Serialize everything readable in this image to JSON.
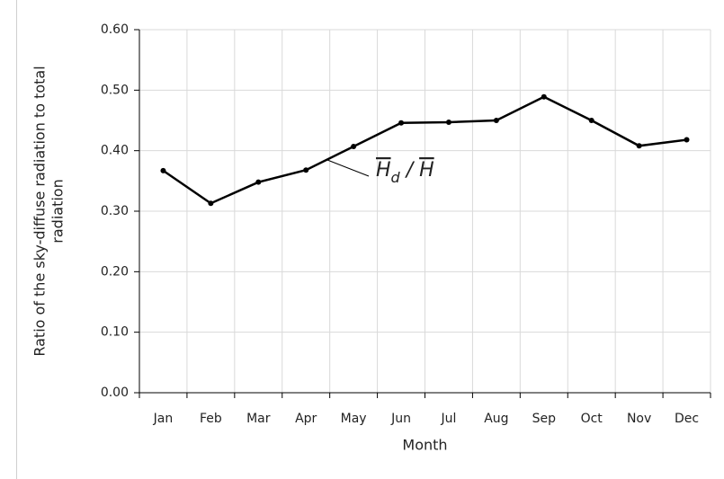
{
  "chart_data": {
    "type": "line",
    "y_label": [
      "Ratio of the sky-diffuse radiation to total",
      "radiation"
    ],
    "x_label": "Month",
    "categories": [
      "Jan",
      "Feb",
      "Mar",
      "Apr",
      "May",
      "Jun",
      "Jul",
      "Aug",
      "Sep",
      "Oct",
      "Nov",
      "Dec"
    ],
    "series": [
      {
        "color": "#000000",
        "values": [
          0.367,
          0.313,
          0.348,
          0.368,
          0.407,
          0.446,
          0.447,
          0.45,
          0.489,
          0.45,
          0.408,
          0.418
        ]
      }
    ],
    "annotation": {
      "symbol": "H",
      "subscript": "d",
      "separator": " / ",
      "denominator": "H"
    },
    "ylim": [
      0,
      0.6
    ],
    "yticks": [
      {
        "value": 0,
        "label": "0.00"
      },
      {
        "value": 0.1,
        "label": "0.10"
      },
      {
        "value": 0.2,
        "label": "0.20"
      },
      {
        "value": 0.3,
        "label": "0.30"
      },
      {
        "value": 0.4,
        "label": "0.40"
      },
      {
        "value": 0.5,
        "label": "0.50"
      },
      {
        "value": 0.6,
        "label": "0.60"
      }
    ],
    "grid": true
  }
}
